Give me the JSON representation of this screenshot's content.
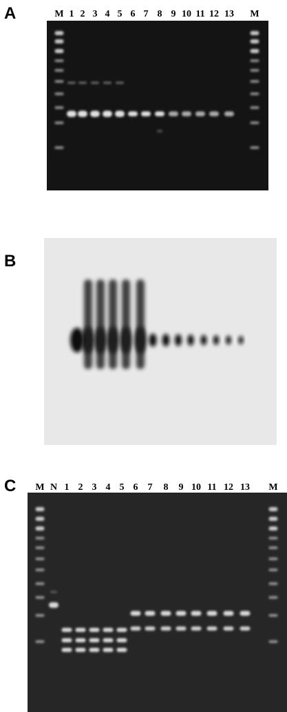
{
  "panels": [
    {
      "label": "A",
      "lanes": [
        "M",
        "1",
        "2",
        "3",
        "4",
        "5",
        "6",
        "7",
        "8",
        "9",
        "10",
        "11",
        "12",
        "13",
        "M"
      ]
    },
    {
      "label": "B"
    },
    {
      "label": "C",
      "lanes": [
        "M",
        "N",
        "1",
        "2",
        "3",
        "4",
        "5",
        "6",
        "7",
        "8",
        "9",
        "10",
        "11",
        "12",
        "13",
        "M"
      ]
    }
  ]
}
